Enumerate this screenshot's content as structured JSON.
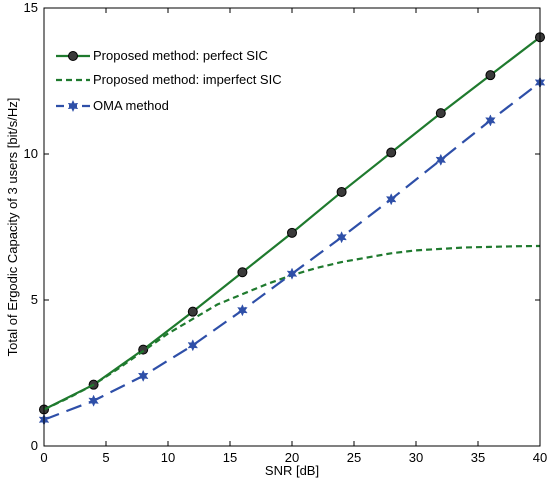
{
  "chart_data": {
    "type": "line",
    "title": "",
    "xlabel": "SNR [dB]",
    "ylabel": "Total of Ergodic Capacity of 3 users [bit/s/Hz]",
    "xlim": [
      0,
      40
    ],
    "ylim": [
      0,
      15
    ],
    "xticks": [
      0,
      5,
      10,
      15,
      20,
      25,
      30,
      35,
      40
    ],
    "yticks": [
      0,
      5,
      10,
      15
    ],
    "grid": false,
    "legend_position": "top-left",
    "series": [
      {
        "name": "Proposed method: perfect SIC",
        "color": "#1f7a2e",
        "line_style": "solid",
        "marker": "circle",
        "x": [
          0,
          4,
          8,
          12,
          16,
          20,
          24,
          28,
          32,
          36,
          40
        ],
        "y": [
          1.25,
          2.1,
          3.3,
          4.6,
          5.95,
          7.3,
          8.7,
          10.05,
          11.4,
          12.7,
          14.0
        ]
      },
      {
        "name": "Proposed method: imperfect SIC",
        "color": "#1f7a2e",
        "line_style": "dashed",
        "marker": "none",
        "x": [
          0,
          2,
          4,
          6,
          8,
          10,
          12,
          14,
          16,
          18,
          20,
          22,
          24,
          26,
          28,
          30,
          32,
          34,
          36,
          38,
          40
        ],
        "y": [
          1.25,
          1.65,
          2.1,
          2.65,
          3.25,
          3.85,
          4.35,
          4.85,
          5.2,
          5.55,
          5.85,
          6.1,
          6.3,
          6.45,
          6.6,
          6.7,
          6.75,
          6.8,
          6.82,
          6.84,
          6.85
        ]
      },
      {
        "name": "OMA method",
        "color": "#2e4fa8",
        "line_style": "dashed",
        "marker": "star",
        "x": [
          0,
          4,
          8,
          12,
          16,
          20,
          24,
          28,
          32,
          36,
          40
        ],
        "y": [
          0.9,
          1.55,
          2.4,
          3.45,
          4.65,
          5.9,
          7.15,
          8.45,
          9.8,
          11.15,
          12.45
        ]
      }
    ]
  }
}
